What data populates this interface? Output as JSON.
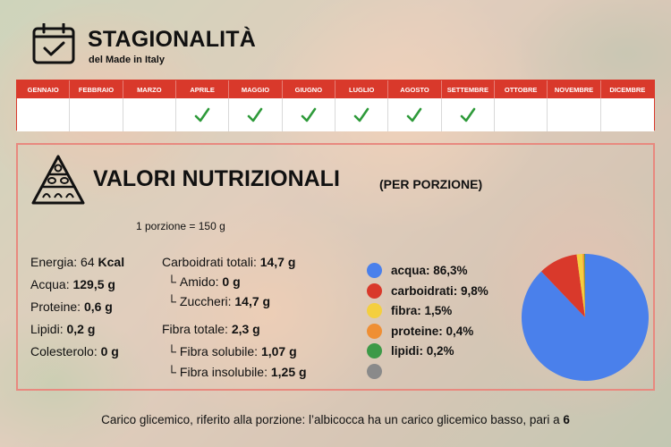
{
  "header": {
    "title": "STAGIONALITÀ",
    "subtitle": "del Made in Italy"
  },
  "months": [
    {
      "label": "GENNAIO",
      "in_season": false
    },
    {
      "label": "FEBBRAIO",
      "in_season": false
    },
    {
      "label": "MARZO",
      "in_season": false
    },
    {
      "label": "APRILE",
      "in_season": true
    },
    {
      "label": "MAGGIO",
      "in_season": true
    },
    {
      "label": "GIUGNO",
      "in_season": true
    },
    {
      "label": "LUGLIO",
      "in_season": true
    },
    {
      "label": "AGOSTO",
      "in_season": true
    },
    {
      "label": "SETTEMBRE",
      "in_season": true
    },
    {
      "label": "OTTOBRE",
      "in_season": false
    },
    {
      "label": "NOVEMBRE",
      "in_season": false
    },
    {
      "label": "DICEMBRE",
      "in_season": false
    }
  ],
  "nutrition": {
    "title": "VALORI NUTRIZIONALI",
    "subtitle": "(PER PORZIONE)",
    "portion": "1 porzione = 150 g",
    "left_column": [
      {
        "label": "Energia: ",
        "value_plain": "64 ",
        "value_bold": "Kcal"
      },
      {
        "label": "Acqua: ",
        "value_plain": "",
        "value_bold": "129,5 g"
      },
      {
        "label": "Proteine: ",
        "value_plain": "",
        "value_bold": "0,6 g"
      },
      {
        "label": "Lipidi: ",
        "value_plain": "",
        "value_bold": "0,2 g"
      },
      {
        "label": "Colesterolo: ",
        "value_plain": "",
        "value_bold": "0 g"
      }
    ],
    "middle_column": [
      {
        "sub": false,
        "label": "Carboidrati totali: ",
        "value": "14,7 g"
      },
      {
        "sub": true,
        "label": "Amido: ",
        "value": "0 g"
      },
      {
        "sub": true,
        "label": "Zuccheri: ",
        "value": "14,7 g"
      },
      {
        "sub": false,
        "label": "Fibra totale: ",
        "value": "2,3 g"
      },
      {
        "sub": true,
        "label": "Fibra solubile: ",
        "value": "1,07 g"
      },
      {
        "sub": true,
        "label": "Fibra insolubile: ",
        "value": "1,25 g"
      }
    ]
  },
  "chart_data": {
    "type": "pie",
    "slices": [
      {
        "label": "acqua: 86,3%",
        "value": 86.3,
        "color": "#4a80eb"
      },
      {
        "label": "carboidrati: 9,8%",
        "value": 9.8,
        "color": "#d9392b"
      },
      {
        "label": "fibra: 1,5%",
        "value": 1.5,
        "color": "#f4cf3f"
      },
      {
        "label": "proteine: 0,4%",
        "value": 0.4,
        "color": "#ef8f34"
      },
      {
        "label": "lipidi: 0,2%",
        "value": 0.2,
        "color": "#3d9a48"
      },
      {
        "label": "",
        "value": 0,
        "color": "#8a8a8a"
      }
    ]
  },
  "footer": {
    "text": "Carico glicemico, riferito alla porzione: l’albicocca ha un carico glicemico basso, pari a ",
    "value": "6"
  },
  "icons": {
    "calendar": "calendar-check-icon",
    "pyramid": "food-pyramid-icon",
    "check": "checkmark-icon"
  },
  "colors": {
    "accent_red": "#d9392b",
    "check_green": "#2e9a3a",
    "box_border": "#e8897f"
  }
}
